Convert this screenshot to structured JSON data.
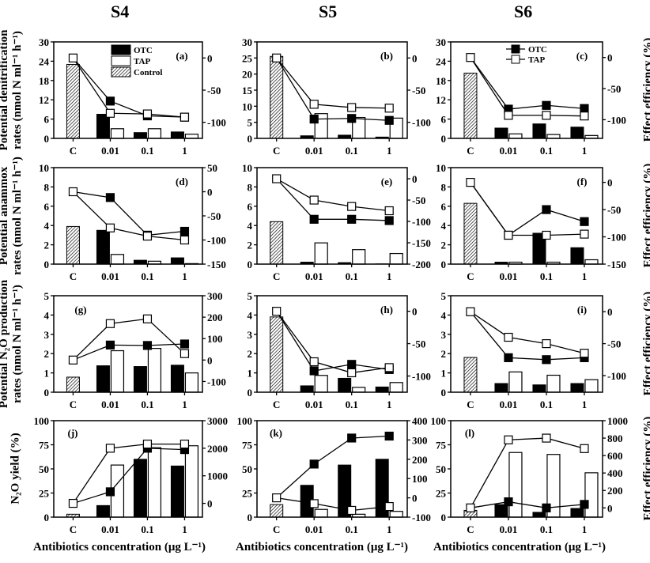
{
  "columns": [
    "S4",
    "S5",
    "S6"
  ],
  "row_labels": [
    {
      "line1": "Potential denitrification",
      "line2": "rates (nmol N ml⁻¹ h⁻¹)"
    },
    {
      "line1": "Potential anammox",
      "line2": "rates (nmol N ml⁻¹ h⁻¹)"
    },
    {
      "line1": "Potential N₂O production",
      "line2": "rates (nmol N ml⁻¹ h⁻¹)"
    },
    {
      "line1": "N₂O yield (%)",
      "line2": ""
    }
  ],
  "right_label": "Effect efficiency (%)",
  "x_label": "Antibiotics concentration (μg L⁻¹)",
  "colors": {
    "otc": "#000000",
    "tap": "#ffffff",
    "control": "hatched"
  },
  "chart_data": {
    "type": "bar+line",
    "categories": [
      "C",
      "0.01",
      "0.1",
      "1"
    ],
    "bar_legend": [
      "OTC",
      "TAP",
      "Control"
    ],
    "line_legend": [
      "OTC",
      "TAP"
    ],
    "panels": [
      {
        "label": "(a)",
        "row": 0,
        "col": 0,
        "ylim": [
          0,
          30
        ],
        "yticks": [
          0,
          6,
          12,
          18,
          24,
          30
        ],
        "y2lim": [
          -125,
          25
        ],
        "y2ticks": [
          -100,
          -50,
          0
        ],
        "control": 23,
        "otc": [
          7.5,
          1.8,
          2.0
        ],
        "tap": [
          3.0,
          3.0,
          1.3
        ],
        "otc_eff": [
          0,
          -67,
          -90,
          -92
        ],
        "tap_eff": [
          0,
          -86,
          -87,
          -92
        ]
      },
      {
        "label": "(b)",
        "row": 0,
        "col": 1,
        "ylim": [
          0,
          30
        ],
        "yticks": [
          0,
          5,
          10,
          15,
          20,
          25,
          30
        ],
        "y2lim": [
          -125,
          25
        ],
        "y2ticks": [
          -100,
          -50,
          0
        ],
        "control": 25.5,
        "otc": [
          0.8,
          1.0,
          0.4
        ],
        "tap": [
          7.7,
          6.5,
          6.3
        ],
        "otc_eff": [
          0,
          -95,
          -94,
          -97
        ],
        "tap_eff": [
          0,
          -72,
          -77,
          -78
        ]
      },
      {
        "label": "(c)",
        "row": 0,
        "col": 2,
        "ylim": [
          0,
          30
        ],
        "yticks": [
          0,
          6,
          12,
          18,
          24,
          30
        ],
        "y2lim": [
          -130,
          25
        ],
        "y2ticks": [
          -100,
          -50,
          0
        ],
        "control": 20.3,
        "otc": [
          3.2,
          4.5,
          3.5
        ],
        "tap": [
          1.4,
          1.2,
          0.9
        ],
        "otc_eff": [
          0,
          -83,
          -77,
          -82
        ],
        "tap_eff": [
          0,
          -93,
          -93,
          -94
        ]
      },
      {
        "label": "(d)",
        "row": 1,
        "col": 0,
        "ylim": [
          0,
          10
        ],
        "yticks": [
          0,
          2,
          4,
          6,
          8,
          10
        ],
        "y2lim": [
          -150,
          50
        ],
        "y2ticks": [
          -150,
          -100,
          -50,
          0,
          50
        ],
        "control": 3.9,
        "otc": [
          3.5,
          0.4,
          0.65
        ],
        "tap": [
          1.0,
          0.3,
          0.05
        ],
        "otc_eff": [
          0,
          -12,
          -90,
          -82
        ],
        "tap_eff": [
          0,
          -75,
          -92,
          -100
        ]
      },
      {
        "label": "(e)",
        "row": 1,
        "col": 1,
        "ylim": [
          0,
          10
        ],
        "yticks": [
          0,
          2,
          4,
          6,
          8,
          10
        ],
        "y2lim": [
          -200,
          26
        ],
        "y2ticks": [
          -200,
          -150,
          -100,
          -50,
          0
        ],
        "control": 4.4,
        "otc": [
          0.2,
          0.15,
          0.02
        ],
        "tap": [
          2.2,
          1.5,
          1.1
        ],
        "otc_eff": [
          0,
          -95,
          -95,
          -98
        ],
        "tap_eff": [
          0,
          -50,
          -65,
          -75
        ]
      },
      {
        "label": "(f)",
        "row": 1,
        "col": 2,
        "ylim": [
          0,
          10
        ],
        "yticks": [
          0,
          2,
          4,
          6,
          8,
          10
        ],
        "y2lim": [
          -150,
          27
        ],
        "y2ticks": [
          -150,
          -100,
          -50,
          0
        ],
        "control": 6.3,
        "otc": [
          0.2,
          3.2,
          1.7
        ],
        "tap": [
          0.2,
          0.2,
          0.45
        ],
        "otc_eff": [
          0,
          -97,
          -50,
          -72
        ],
        "tap_eff": [
          0,
          -97,
          -97,
          -95
        ]
      },
      {
        "label": "(g)",
        "row": 2,
        "col": 0,
        "ylim": [
          0,
          5
        ],
        "yticks": [
          0,
          1,
          2,
          3,
          4,
          5
        ],
        "y2lim": [
          -150,
          300
        ],
        "y2ticks": [
          -100,
          0,
          100,
          200,
          300
        ],
        "control": 0.78,
        "otc": [
          1.37,
          1.33,
          1.4
        ],
        "tap": [
          2.15,
          2.27,
          1.0
        ],
        "otc_eff": [
          0,
          70,
          68,
          75
        ],
        "tap_eff": [
          0,
          170,
          192,
          30
        ]
      },
      {
        "label": "(h)",
        "row": 2,
        "col": 1,
        "ylim": [
          0,
          5
        ],
        "yticks": [
          0,
          1,
          2,
          3,
          4,
          5
        ],
        "y2lim": [
          -125,
          24
        ],
        "y2ticks": [
          -100,
          -50,
          0
        ],
        "control": 3.9,
        "otc": [
          0.33,
          0.72,
          0.27
        ],
        "tap": [
          0.87,
          0.25,
          0.5
        ],
        "otc_eff": [
          0,
          -92,
          -82,
          -90
        ],
        "tap_eff": [
          0,
          -78,
          -95,
          -87
        ]
      },
      {
        "label": "(i)",
        "row": 2,
        "col": 2,
        "ylim": [
          0,
          5
        ],
        "yticks": [
          0,
          1,
          2,
          3,
          4,
          5
        ],
        "y2lim": [
          -126,
          25
        ],
        "y2ticks": [
          -100,
          -50,
          0
        ],
        "control": 1.8,
        "otc": [
          0.45,
          0.38,
          0.45
        ],
        "tap": [
          1.05,
          0.88,
          0.65
        ],
        "otc_eff": [
          0,
          -72,
          -75,
          -72
        ],
        "tap_eff": [
          0,
          -40,
          -50,
          -65
        ]
      },
      {
        "label": "(j)",
        "row": 3,
        "col": 0,
        "ylim": [
          0,
          100
        ],
        "yticks": [
          0,
          25,
          50,
          75,
          100
        ],
        "y2lim": [
          -500,
          3000
        ],
        "y2ticks": [
          0,
          1000,
          2000,
          3000
        ],
        "control": 3,
        "otc": [
          12,
          60,
          53
        ],
        "tap": [
          54,
          72,
          74
        ],
        "otc_eff": [
          0,
          420,
          2000,
          1950
        ],
        "tap_eff": [
          0,
          2000,
          2150,
          2150
        ]
      },
      {
        "label": "(k)",
        "row": 3,
        "col": 1,
        "ylim": [
          0,
          100
        ],
        "yticks": [
          0,
          25,
          50,
          75,
          100
        ],
        "y2lim": [
          -100,
          400
        ],
        "y2ticks": [
          -100,
          0,
          100,
          200,
          300,
          400
        ],
        "control": 13,
        "otc": [
          33,
          54,
          60
        ],
        "tap": [
          8,
          3,
          6
        ],
        "otc_eff": [
          0,
          175,
          310,
          320
        ],
        "tap_eff": [
          0,
          -30,
          -65,
          -45
        ]
      },
      {
        "label": "(l)",
        "row": 3,
        "col": 2,
        "ylim": [
          0,
          100
        ],
        "yticks": [
          0,
          25,
          50,
          75,
          100
        ],
        "y2lim": [
          -106,
          1000
        ],
        "y2ticks": [
          0,
          200,
          400,
          600,
          800,
          1000
        ],
        "control": 7,
        "otc": [
          13,
          5,
          9
        ],
        "tap": [
          67,
          65,
          46
        ],
        "otc_eff": [
          0,
          70,
          0,
          40
        ],
        "tap_eff": [
          0,
          780,
          800,
          680
        ]
      }
    ]
  }
}
